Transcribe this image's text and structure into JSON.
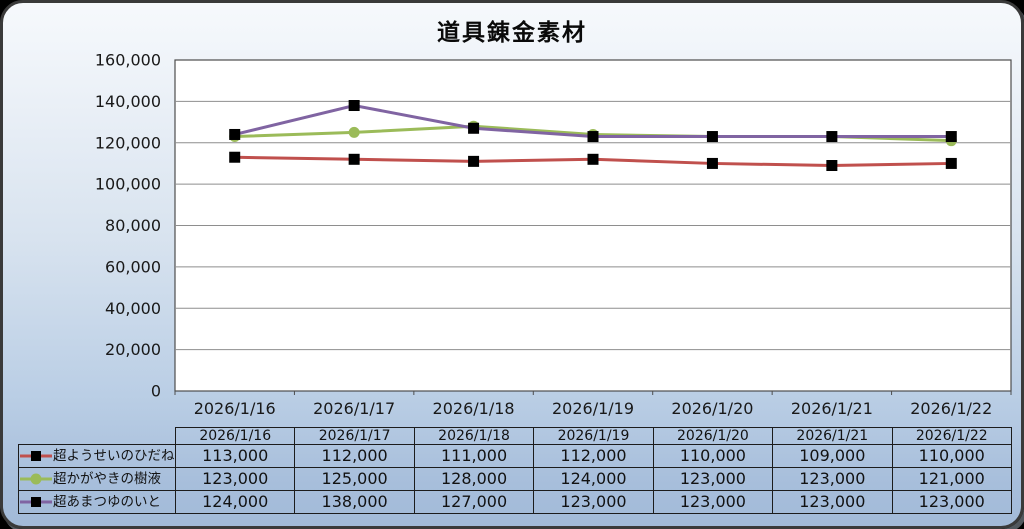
{
  "window": {
    "outer_background": "#000000"
  },
  "frame": {
    "border_color": "#3a3a3a",
    "background_top": "#f6f9fc",
    "background_bottom": "#a2bad8"
  },
  "chart_data": {
    "type": "line",
    "title": "道具錬金素材",
    "xlabel": "",
    "ylabel": "",
    "categories": [
      "2026/1/16",
      "2026/1/17",
      "2026/1/18",
      "2026/1/19",
      "2026/1/20",
      "2026/1/21",
      "2026/1/22"
    ],
    "series": [
      {
        "name": "超ようせいのひだね",
        "color": "#c0504d",
        "marker": "square",
        "marker_color": "#000000",
        "values": [
          113000,
          112000,
          111000,
          112000,
          110000,
          109000,
          110000
        ]
      },
      {
        "name": "超かがやきの樹液",
        "color": "#9bbb59",
        "marker": "circle",
        "marker_color": "#9bbb59",
        "values": [
          123000,
          125000,
          128000,
          124000,
          123000,
          123000,
          121000
        ]
      },
      {
        "name": "超あまつゆのいと",
        "color": "#8064a2",
        "marker": "square",
        "marker_color": "#000000",
        "values": [
          124000,
          138000,
          127000,
          123000,
          123000,
          123000,
          123000
        ]
      }
    ],
    "ylim": [
      0,
      160000
    ],
    "ytick_step": 20000,
    "ytick_labels": [
      "0",
      "20,000",
      "40,000",
      "60,000",
      "80,000",
      "100,000",
      "120,000",
      "140,000",
      "160,000"
    ],
    "grid": true,
    "gridline_color": "#8e8e8e",
    "plot_background": "#ffffff",
    "plot_border_color": "#4d4d4d",
    "legend_position": "table-left"
  }
}
